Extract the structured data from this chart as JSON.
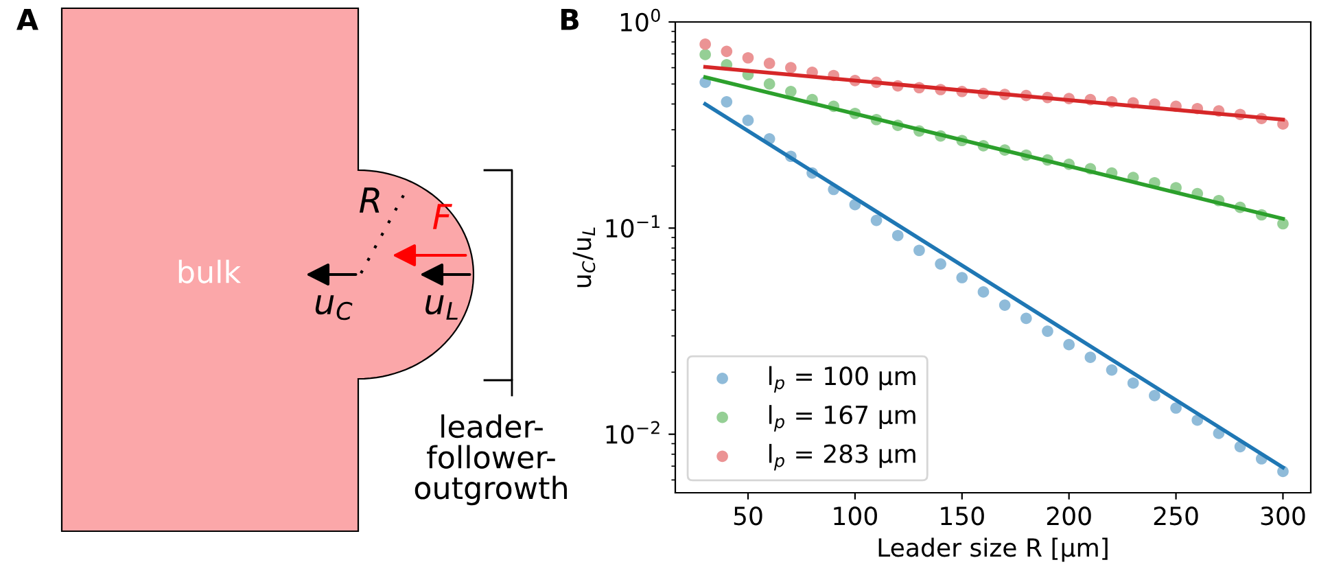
{
  "chart_data": [
    {
      "type": "other",
      "annotations": [
        "A",
        "bulk",
        "R",
        "F",
        "u$_{C}$",
        "u$_{L}$",
        "leader-\nfollower-\noutgrowth"
      ]
    },
    {
      "type": "scatter",
      "annotations": [
        "B"
      ],
      "xlabel": "Leader size R [μm]",
      "ylabel": "u$_{C}$/u$_{L}$",
      "log": "y",
      "grid": false,
      "legend": "bottom left",
      "marker": "circle",
      "x": [
        30,
        40,
        50,
        60,
        70,
        80,
        90,
        100,
        110,
        120,
        130,
        140,
        150,
        160,
        170,
        180,
        190,
        200,
        210,
        220,
        230,
        240,
        250,
        260,
        270,
        280,
        290,
        300
      ],
      "xlim": [
        16,
        313
      ],
      "xticks": [
        50,
        100,
        150,
        200,
        250,
        300
      ],
      "ylim": [
        0.0052,
        1
      ],
      "yticks": [
        {
          "value": 1,
          "label": "10$^{0}$"
        },
        {
          "value": 0.1,
          "label": "10$^{−1}$"
        },
        {
          "value": 0.01,
          "label": "10$^{−2}$"
        }
      ],
      "series": [
        {
          "name": "l$_{p}$ = 100 μm",
          "color": "#8fbbd9",
          "values": [
            0.51,
            0.41,
            0.333,
            0.271,
            0.223,
            0.185,
            0.154,
            0.13,
            0.109,
            0.092,
            0.078,
            0.067,
            0.0575,
            0.049,
            0.0423,
            0.0365,
            0.0316,
            0.0272,
            0.0236,
            0.0205,
            0.0177,
            0.0154,
            0.0134,
            0.0117,
            0.0101,
            0.0087,
            0.0076,
            0.0066
          ]
        },
        {
          "name": "l$_{p}$ = 167 μm",
          "color": "#95cf95",
          "values": [
            0.695,
            0.62,
            0.555,
            0.5,
            0.46,
            0.42,
            0.39,
            0.36,
            0.336,
            0.315,
            0.296,
            0.28,
            0.266,
            0.251,
            0.239,
            0.226,
            0.214,
            0.204,
            0.194,
            0.185,
            0.176,
            0.166,
            0.157,
            0.147,
            0.136,
            0.126,
            0.116,
            0.105
          ]
        },
        {
          "name": "l$_{p}$ = 283 μm",
          "color": "#eb9394",
          "values": [
            0.78,
            0.72,
            0.67,
            0.63,
            0.6,
            0.57,
            0.55,
            0.52,
            0.51,
            0.49,
            0.48,
            0.47,
            0.46,
            0.45,
            0.445,
            0.44,
            0.43,
            0.425,
            0.42,
            0.41,
            0.405,
            0.4,
            0.39,
            0.38,
            0.37,
            0.356,
            0.34,
            0.32
          ]
        },
        {
          "type": "line",
          "marker": "none",
          "color": "#1f77b4",
          "x": [
            30,
            165,
            300
          ],
          "values": [
            0.4,
            0.0526,
            0.0069
          ]
        },
        {
          "type": "line",
          "marker": "none",
          "color": "#2ca02c",
          "x": [
            30,
            165,
            300
          ],
          "values": [
            0.54,
            0.245,
            0.111
          ]
        },
        {
          "type": "line",
          "marker": "none",
          "color": "#d62728",
          "x": [
            30,
            165,
            300
          ],
          "values": [
            0.605,
            0.451,
            0.336
          ]
        }
      ]
    }
  ]
}
